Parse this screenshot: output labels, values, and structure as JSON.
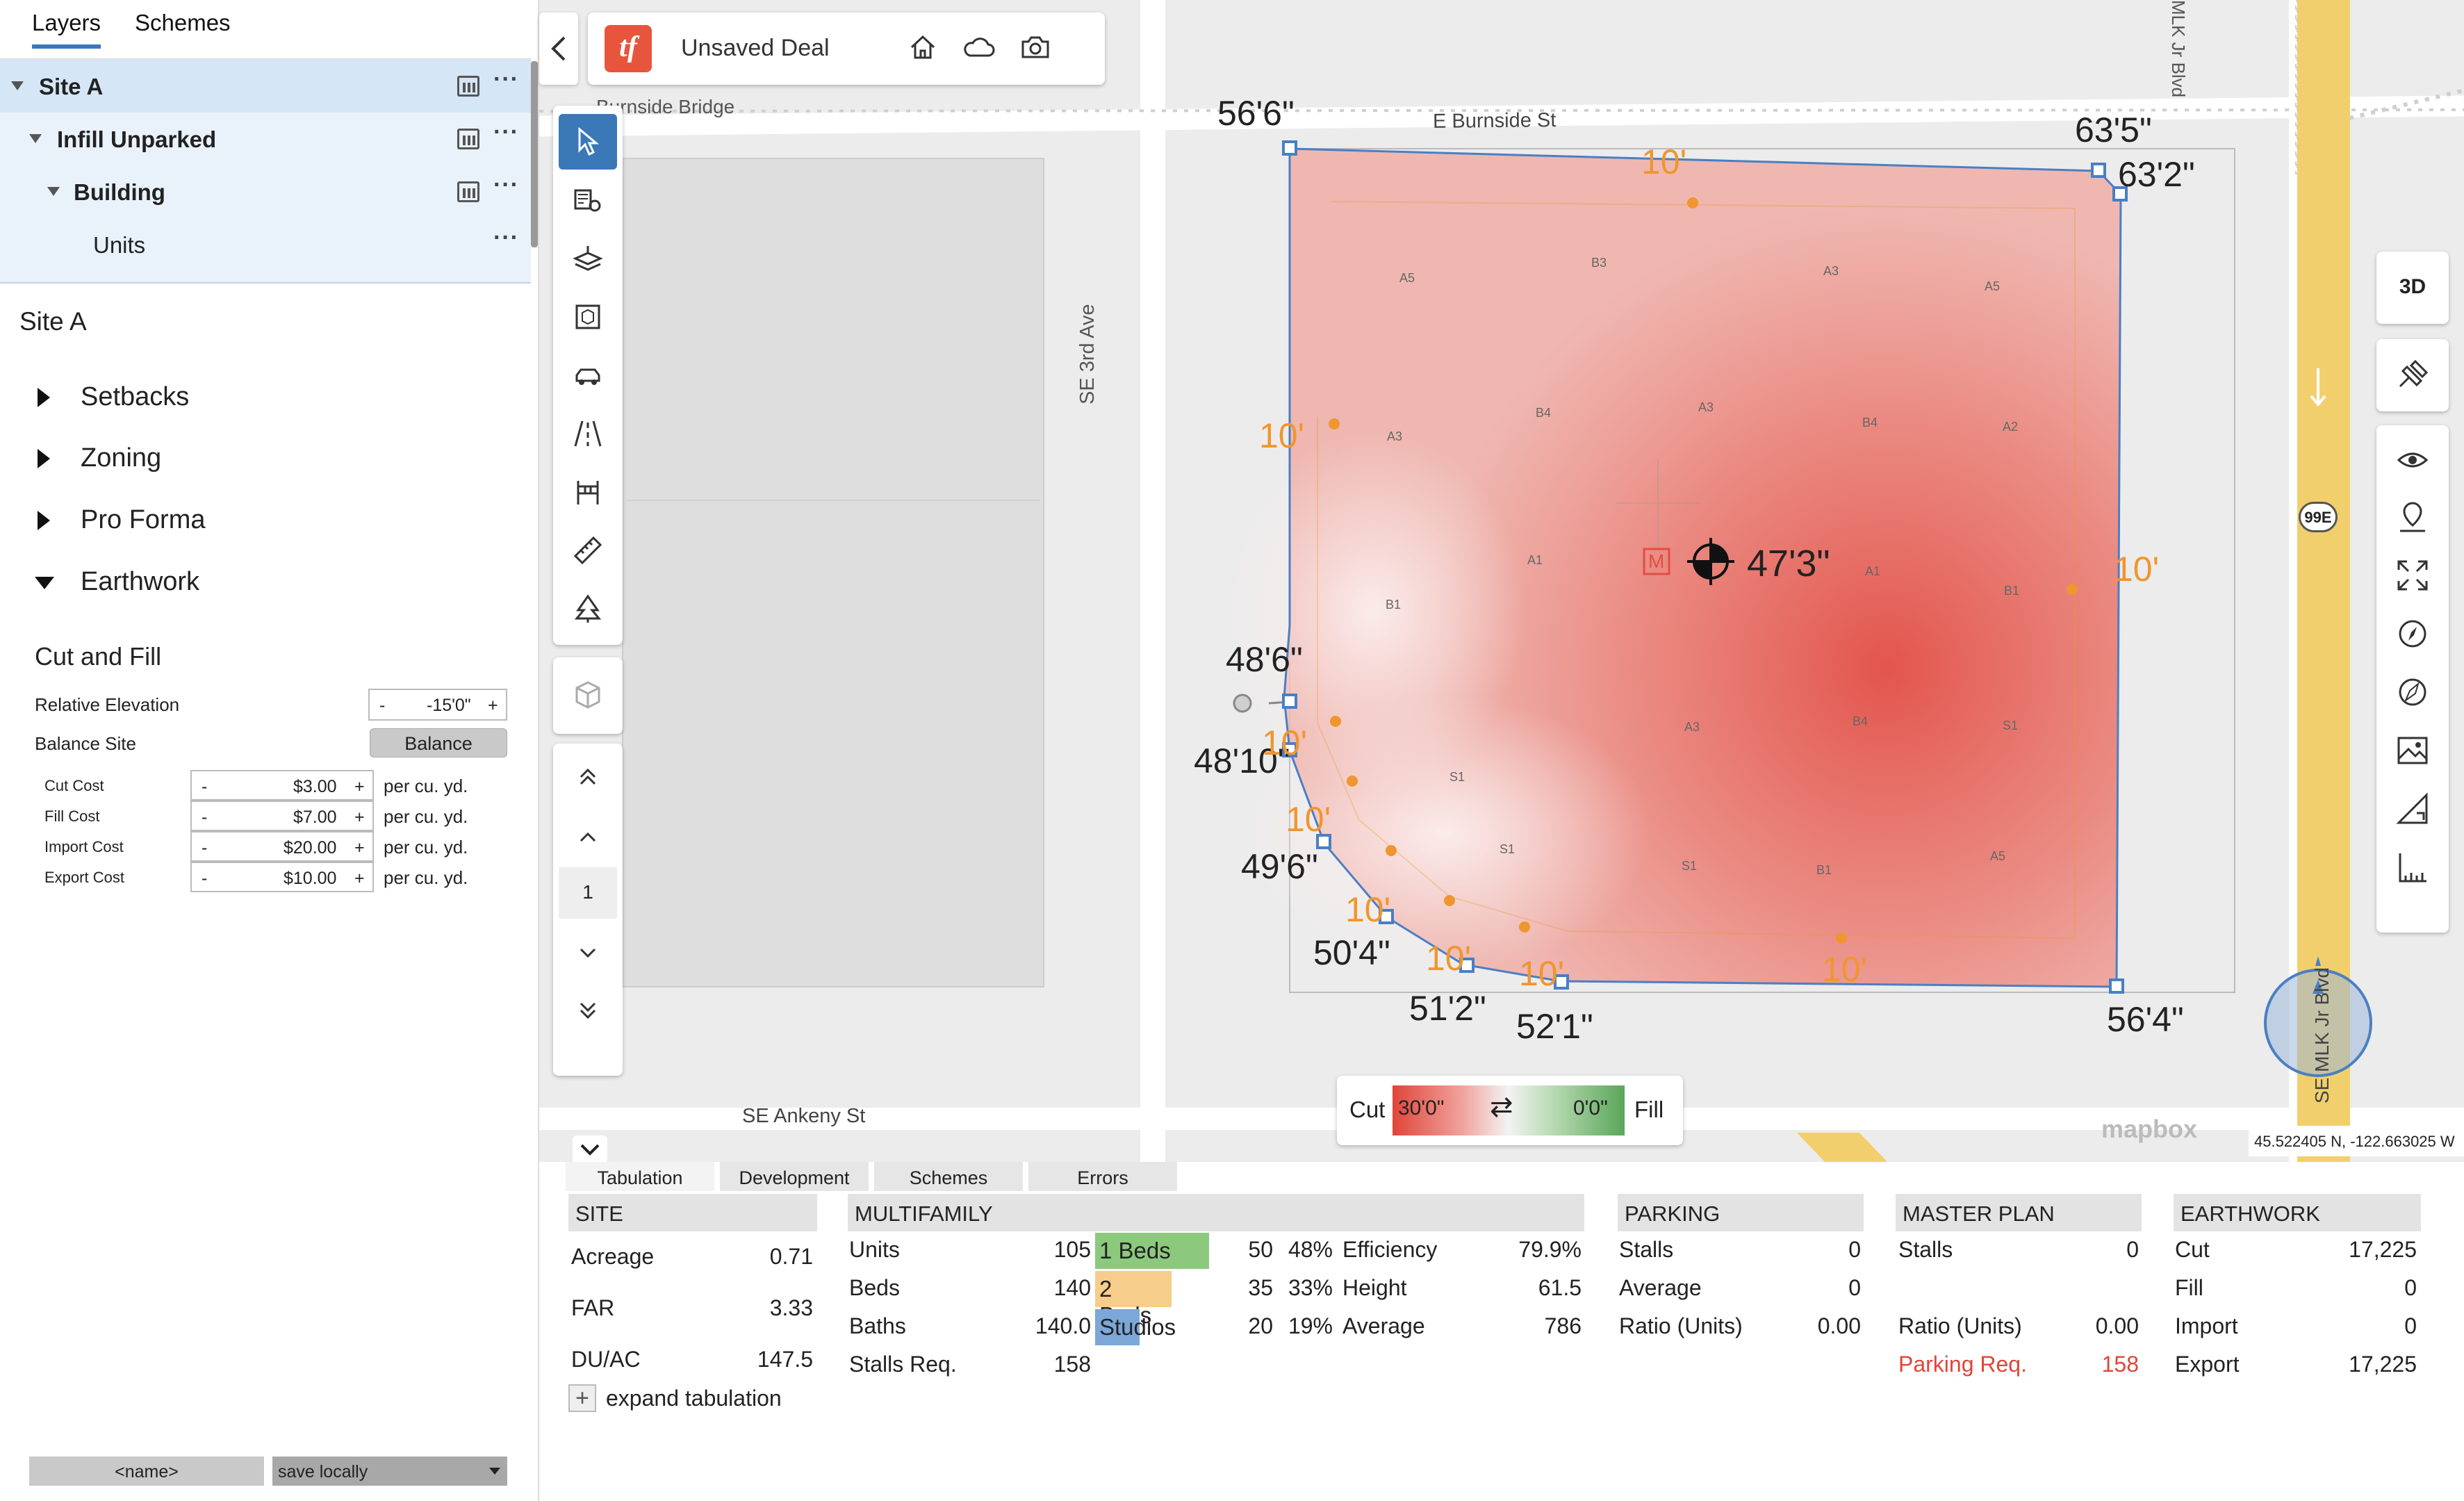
{
  "left_panel": {
    "tabs": [
      "Layers",
      "Schemes"
    ],
    "tree": [
      {
        "label": "Site A"
      },
      {
        "label": "Infill Unparked"
      },
      {
        "label": "Building"
      },
      {
        "label": "Units"
      }
    ],
    "site_title": "Site A",
    "sections": [
      "Setbacks",
      "Zoning",
      "Pro Forma",
      "Earthwork"
    ],
    "cut_fill": {
      "title": "Cut and Fill",
      "relative_elevation_label": "Relative Elevation",
      "relative_elevation_value": "-15'0\"",
      "balance_site_label": "Balance Site",
      "balance_button": "Balance",
      "costs": [
        {
          "label": "Cut Cost",
          "value": "$3.00",
          "unit": "per cu. yd."
        },
        {
          "label": "Fill Cost",
          "value": "$7.00",
          "unit": "per cu. yd."
        },
        {
          "label": "Import Cost",
          "value": "$20.00",
          "unit": "per cu. yd."
        },
        {
          "label": "Export Cost",
          "value": "$10.00",
          "unit": "per cu. yd."
        }
      ],
      "minus": "-",
      "plus": "+"
    },
    "footer": {
      "name_placeholder": "<name>",
      "save_select": "save locally"
    }
  },
  "topcard": {
    "logo": "tf",
    "title": "Unsaved Deal"
  },
  "vertical_nav": {
    "page": "1"
  },
  "right_toolbar": {
    "mode": "3D",
    "highway_shield": "99E"
  },
  "map": {
    "streets": {
      "burnside_bridge": "Burnside Bridge",
      "burnside": "E Burnside St",
      "se3rd": "SE 3rd Ave",
      "ankeny": "SE Ankeny St",
      "mlk_jr": "MLK Jr Blvd",
      "se_mlk": "SE MLK Jr Blvd"
    },
    "elevations": [
      "56'6\"",
      "63'5\"",
      "63'2\"",
      "48'6\"",
      "48'10\"",
      "49'6\"",
      "50'4\"",
      "51'2\"",
      "52'1\"",
      "56'4\"",
      "47'3\""
    ],
    "setback_label": "10'",
    "setback_count": 10,
    "unit_tags": [
      "A5",
      "B3",
      "A3",
      "A5",
      "A3",
      "B4",
      "A3",
      "B4",
      "A2",
      "A1",
      "A1",
      "B1",
      "B1",
      "A3",
      "B4",
      "S1",
      "S1",
      "S1",
      "S1",
      "B1",
      "A5"
    ],
    "marker_label": "M",
    "legend": {
      "cut_label": "Cut",
      "cut_value": "30'0\"",
      "fill_value": "0'0\"",
      "fill_label": "Fill"
    },
    "attribution": "mapbox",
    "coords": "45.522405 N, -122.663025 W"
  },
  "bottom": {
    "tabs": [
      "Tabulation",
      "Development",
      "Schemes",
      "Errors"
    ],
    "site": {
      "header": "SITE",
      "rows": [
        {
          "label": "Acreage",
          "value": "0.71"
        },
        {
          "label": "FAR",
          "value": "3.33"
        },
        {
          "label": "DU/AC",
          "value": "147.5"
        }
      ],
      "expand": "expand tabulation"
    },
    "multifamily": {
      "header": "MULTIFAMILY",
      "rows": [
        {
          "label": "Units",
          "value": "105"
        },
        {
          "label": "Beds",
          "value": "140"
        },
        {
          "label": "Baths",
          "value": "140.0"
        },
        {
          "label": "Stalls Req.",
          "value": "158"
        }
      ],
      "mix": [
        {
          "label": "1 Beds",
          "count": "50",
          "pct": "48%",
          "color": "#8cc97d"
        },
        {
          "label": "2 Beds",
          "count": "35",
          "pct": "33%",
          "color": "#f6cd8a"
        },
        {
          "label": "Studios",
          "count": "20",
          "pct": "19%",
          "color": "#7ba7d9"
        }
      ],
      "stats": [
        {
          "label": "Efficiency",
          "value": "79.9%"
        },
        {
          "label": "Height",
          "value": "61.5"
        },
        {
          "label": "Average",
          "value": "786"
        }
      ]
    },
    "parking": {
      "header": "PARKING",
      "rows": [
        {
          "label": "Stalls",
          "value": "0"
        },
        {
          "label": "Average",
          "value": "0"
        },
        {
          "label": "Ratio (Units)",
          "value": "0.00"
        }
      ]
    },
    "master_plan": {
      "header": "MASTER PLAN",
      "rows": [
        {
          "label": "Stalls",
          "value": "0"
        },
        {
          "label": "Ratio (Units)",
          "value": "0.00"
        },
        {
          "label": "Parking Req.",
          "value": "158"
        }
      ]
    },
    "earthwork": {
      "header": "EARTHWORK",
      "rows": [
        {
          "label": "Cut",
          "value": "17,225"
        },
        {
          "label": "Fill",
          "value": "0"
        },
        {
          "label": "Import",
          "value": "0"
        },
        {
          "label": "Export",
          "value": "17,225"
        }
      ]
    }
  },
  "colors": {
    "accent": "#3b78b7",
    "cut": "#e0453a",
    "fill": "#5aa65a",
    "setback": "#f0962e",
    "logo": "#e8553d"
  }
}
